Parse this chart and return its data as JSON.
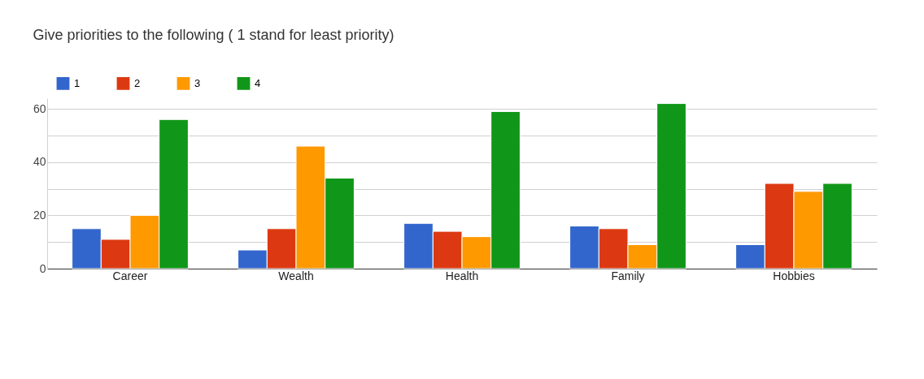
{
  "chart_data": {
    "type": "bar",
    "title": "Give priorities to the following ( 1 stand for least priority)",
    "categories": [
      "Career",
      "Wealth",
      "Health",
      "Family",
      "Hobbies"
    ],
    "series": [
      {
        "name": "1",
        "color": "#3366cc",
        "values": [
          15,
          7,
          17,
          16,
          9
        ]
      },
      {
        "name": "2",
        "color": "#dc3912",
        "values": [
          11,
          15,
          14,
          15,
          32
        ]
      },
      {
        "name": "3",
        "color": "#ff9900",
        "values": [
          20,
          46,
          12,
          9,
          29
        ]
      },
      {
        "name": "4",
        "color": "#109618",
        "values": [
          56,
          34,
          59,
          62,
          32
        ]
      }
    ],
    "ylim": [
      0,
      64
    ],
    "yticks": [
      0,
      {
        "value": 10,
        "label": null
      },
      20,
      {
        "value": 30,
        "label": null
      },
      40,
      {
        "value": 50,
        "label": null
      },
      60
    ],
    "grid": "y",
    "legend": "top left"
  }
}
